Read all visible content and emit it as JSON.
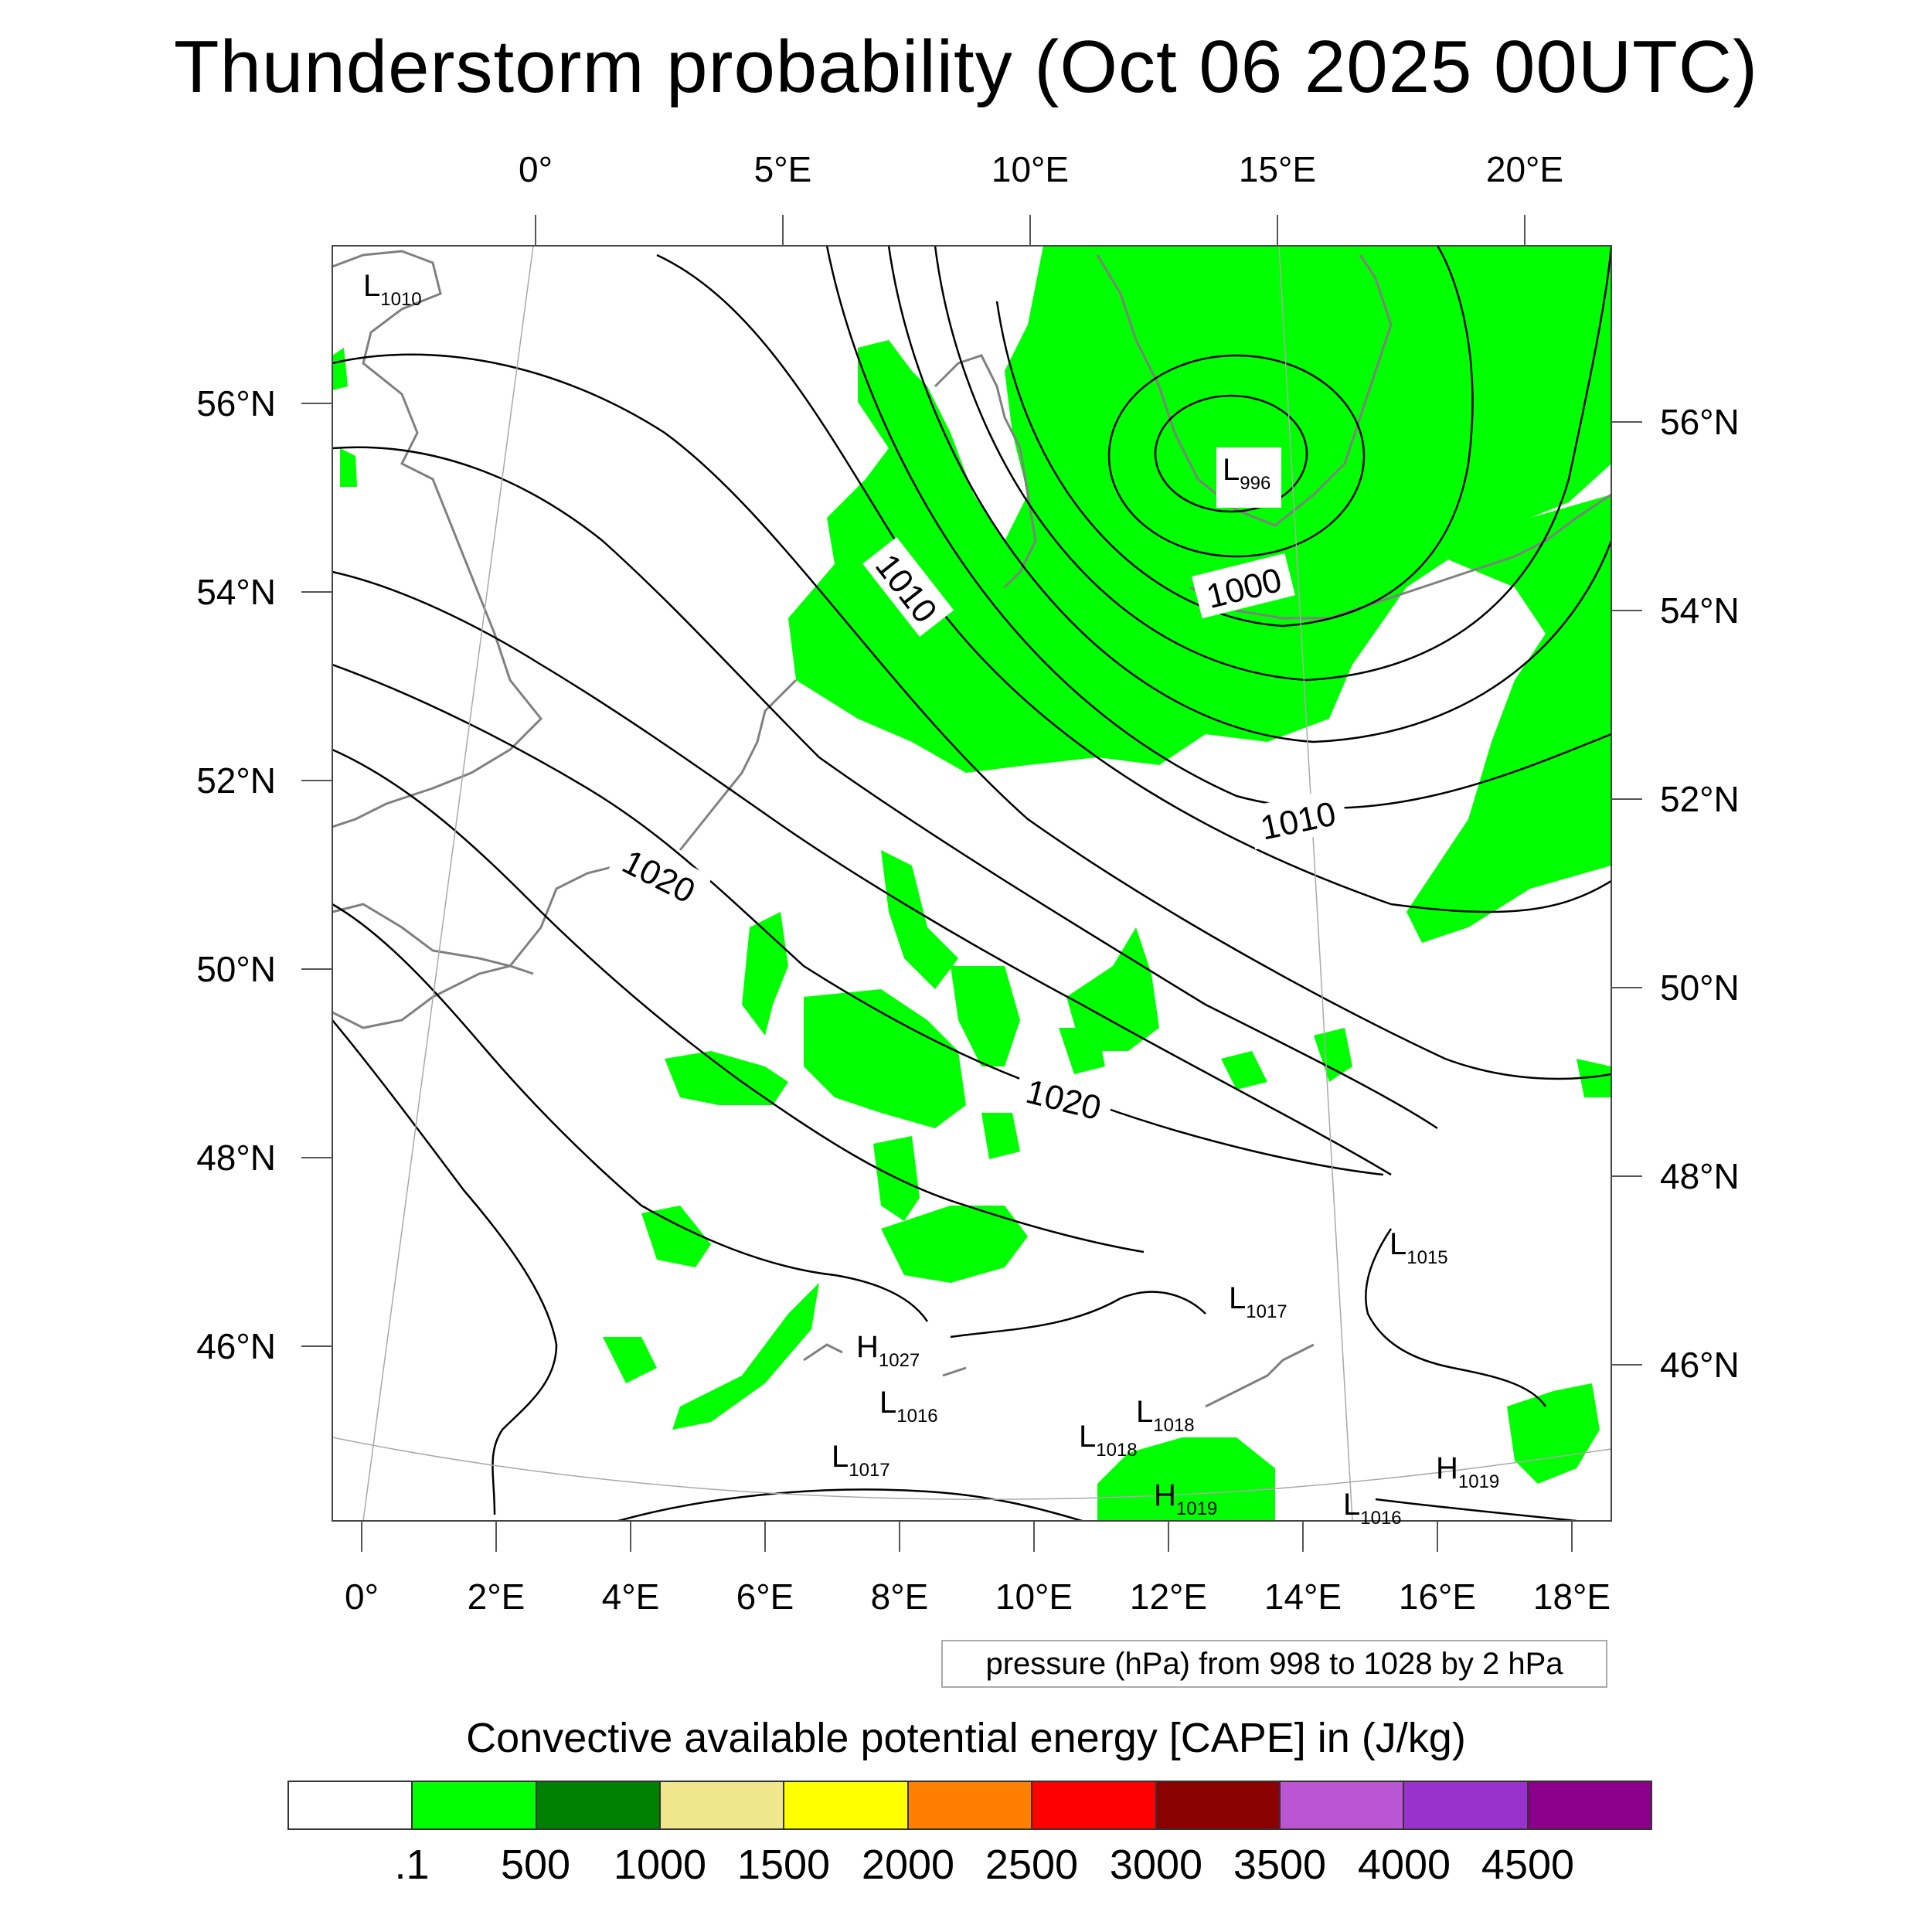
{
  "title": "Thunderstorm probability (Oct 06 2025 00UTC)",
  "map": {
    "top_lon_labels": [
      "0°",
      "5°E",
      "10°E",
      "15°E",
      "20°E"
    ],
    "bottom_lon_labels": [
      "0°",
      "2°E",
      "4°E",
      "6°E",
      "8°E",
      "10°E",
      "12°E",
      "14°E",
      "16°E",
      "18°E"
    ],
    "left_lat_labels": [
      "56°N",
      "54°N",
      "52°N",
      "50°N",
      "48°N",
      "46°N"
    ],
    "right_lat_labels": [
      "56°N",
      "54°N",
      "52°N",
      "50°N",
      "48°N",
      "46°N"
    ],
    "isobar_labels": [
      "1010",
      "1000",
      "1010",
      "1020",
      "1020"
    ],
    "pressure_centers": [
      {
        "type": "L",
        "value": "1010"
      },
      {
        "type": "L",
        "value": "996"
      },
      {
        "type": "L",
        "value": "1015"
      },
      {
        "type": "L",
        "value": "1017"
      },
      {
        "type": "H",
        "value": "1027"
      },
      {
        "type": "L",
        "value": "1016"
      },
      {
        "type": "L",
        "value": "1018"
      },
      {
        "type": "L",
        "value": "1018"
      },
      {
        "type": "L",
        "value": "1017"
      },
      {
        "type": "H",
        "value": "1019"
      },
      {
        "type": "H",
        "value": "1019"
      },
      {
        "type": "L",
        "value": "1016"
      }
    ],
    "colors": {
      "cape_low": "#00ff00",
      "isobar": "#000000",
      "coast": "#808080"
    }
  },
  "pressure_note": "pressure (hPa) from 998 to 1028 by 2 hPa",
  "colorbar": {
    "title": "Convective available potential energy [CAPE] in (J/kg)",
    "colors": [
      "#ffffff",
      "#00ff00",
      "#008000",
      "#f0e68c",
      "#ffff00",
      "#ff8000",
      "#ff0000",
      "#8b0000",
      "#ba55d3",
      "#9932cc",
      "#8b008b"
    ],
    "tick_labels": [
      ".1",
      "500",
      "1000",
      "1500",
      "2000",
      "2500",
      "3000",
      "3500",
      "4000",
      "4500"
    ]
  }
}
